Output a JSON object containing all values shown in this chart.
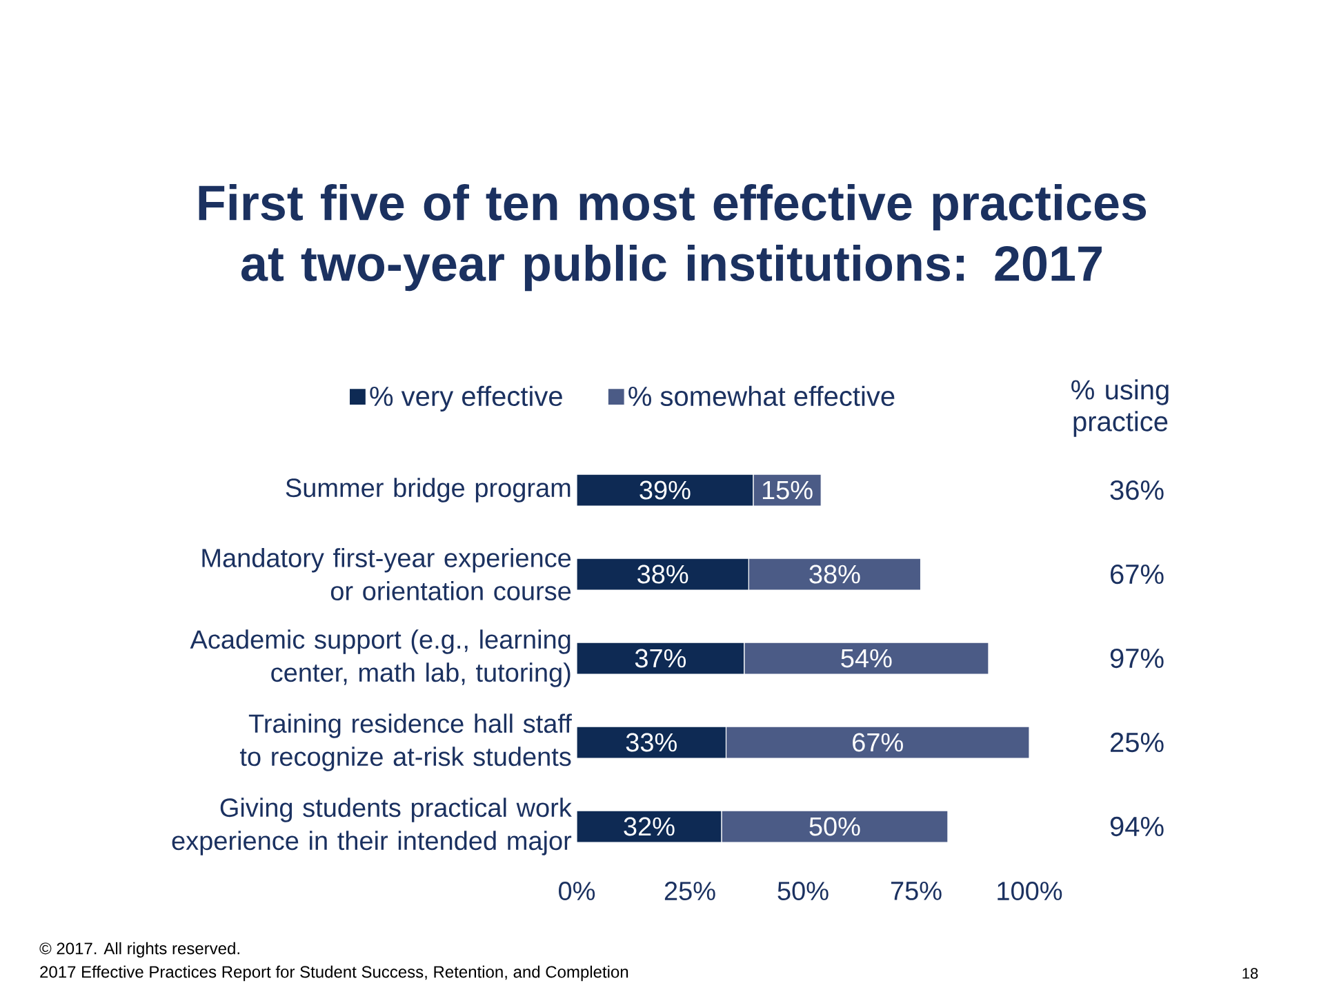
{
  "chart_data": {
    "type": "bar",
    "orientation": "horizontal",
    "stacked": true,
    "title": "First five of ten most effective practices at two-year public institutions: 2017",
    "categories": [
      "Summer bridge program",
      "Mandatory first-year experience or orientation course",
      "Academic support (e.g., learning center, math lab, tutoring)",
      "Training residence hall staff to recognize at-risk students",
      "Giving students practical work experience in their intended major"
    ],
    "series": [
      {
        "name": "% very effective",
        "color": "#0e2a54",
        "values": [
          39,
          38,
          37,
          33,
          32
        ],
        "value_labels": [
          "39%",
          "38%",
          "37%",
          "33%",
          "32%"
        ]
      },
      {
        "name": "% somewhat effective",
        "color": "#4b5b86",
        "values": [
          15,
          38,
          54,
          67,
          50
        ],
        "value_labels": [
          "15%",
          "38%",
          "54%",
          "67%",
          "50%"
        ]
      }
    ],
    "xlim": [
      0,
      100
    ],
    "xticks": [
      {
        "value": 0,
        "label": "0%"
      },
      {
        "value": 25,
        "label": "25%"
      },
      {
        "value": 50,
        "label": "50%"
      },
      {
        "value": 75,
        "label": "75%"
      },
      {
        "value": 100,
        "label": "100%"
      }
    ],
    "legend": "top",
    "grid": false,
    "annotations": [
      "% using practice",
      "36%",
      "67%",
      "97%",
      "25%",
      "94%",
      "© 2017. All rights reserved.",
      "2017 Effective Practices Report for Student Success, Retention, and Completion",
      "18"
    ]
  }
}
